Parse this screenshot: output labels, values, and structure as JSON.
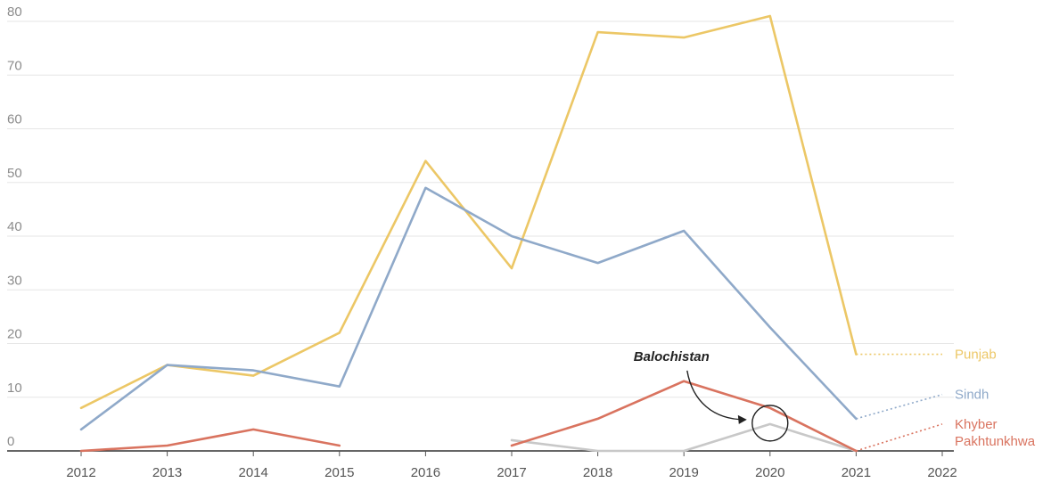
{
  "chart_data": {
    "type": "line",
    "x": [
      2012,
      2013,
      2014,
      2015,
      2016,
      2017,
      2018,
      2019,
      2020,
      2021,
      2022
    ],
    "xlim": [
      2012,
      2022
    ],
    "ylim": [
      0,
      80
    ],
    "yticks": [
      0,
      10,
      20,
      30,
      40,
      50,
      60,
      70,
      80
    ],
    "grid": true,
    "series": [
      {
        "name": "Punjab",
        "label_lines": [
          "Punjab"
        ],
        "color": "#ecc766",
        "points": [
          [
            2012,
            8
          ],
          [
            2013,
            16
          ],
          [
            2014,
            14
          ],
          [
            2015,
            22
          ],
          [
            2016,
            54
          ],
          [
            2017,
            34
          ],
          [
            2018,
            78
          ],
          [
            2019,
            77
          ],
          [
            2020,
            81
          ],
          [
            2021,
            18
          ]
        ],
        "projection": [
          [
            2021,
            18
          ],
          [
            2022,
            18
          ]
        ]
      },
      {
        "name": "Sindh",
        "label_lines": [
          "Sindh"
        ],
        "color": "#8fa9c9",
        "points": [
          [
            2012,
            4
          ],
          [
            2013,
            16
          ],
          [
            2014,
            15
          ],
          [
            2015,
            12
          ],
          [
            2016,
            49
          ],
          [
            2017,
            40
          ],
          [
            2018,
            35
          ],
          [
            2019,
            41
          ],
          [
            2020,
            23
          ],
          [
            2021,
            6
          ]
        ],
        "projection": [
          [
            2021,
            6
          ],
          [
            2022,
            10.5
          ]
        ]
      },
      {
        "name": "Khyber Pakhtunkhwa",
        "label_lines": [
          "Khyber",
          "Pakhtunkhwa"
        ],
        "color": "#d9735f",
        "segments": [
          [
            [
              2012,
              0
            ],
            [
              2013,
              1
            ],
            [
              2014,
              4
            ],
            [
              2015,
              1
            ]
          ],
          [
            [
              2017,
              1
            ],
            [
              2018,
              6
            ],
            [
              2019,
              13
            ],
            [
              2020,
              8
            ],
            [
              2021,
              0
            ]
          ]
        ],
        "projection": [
          [
            2021,
            0
          ],
          [
            2022,
            5
          ]
        ]
      },
      {
        "name": "Balochistan",
        "color": "#c8c8c8",
        "points": [
          [
            2017,
            2
          ],
          [
            2018,
            0
          ],
          [
            2019,
            0
          ],
          [
            2020,
            5
          ],
          [
            2021,
            0
          ]
        ]
      }
    ],
    "annotation": {
      "text": "Balochistan",
      "target": [
        2020,
        5
      ]
    }
  }
}
